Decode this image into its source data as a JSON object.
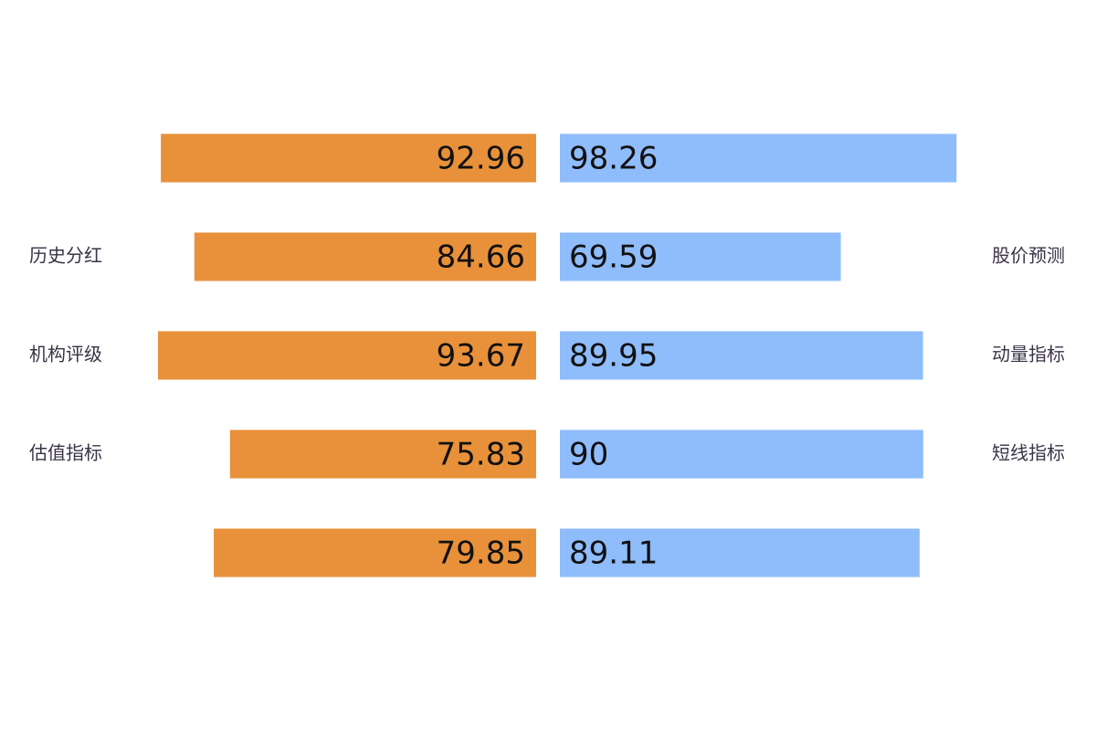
{
  "chart_data": {
    "type": "butterfly",
    "left_categories": [
      null,
      "历史分红",
      "机构评级",
      "估值指标",
      null
    ],
    "right_categories": [
      null,
      "股价预测",
      "动量指标",
      "短线指标",
      null
    ],
    "series": [
      {
        "color": "#e8913a",
        "values": [
          92.96,
          84.66,
          93.67,
          75.83,
          79.85
        ]
      },
      {
        "color": "#8fbcfb",
        "values": [
          98.26,
          69.59,
          89.95,
          90,
          89.11
        ]
      }
    ],
    "xlim": [
      0,
      100
    ]
  }
}
